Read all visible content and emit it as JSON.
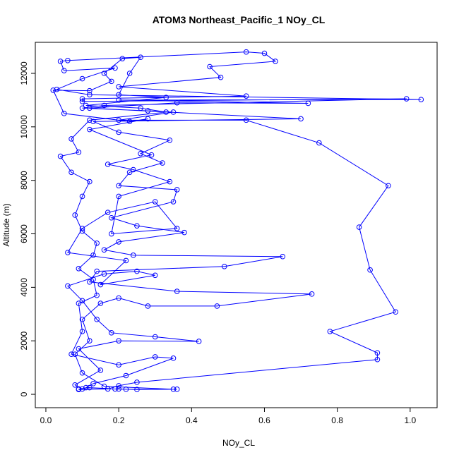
{
  "chart_data": {
    "type": "line",
    "title": "ATOM3 Northeast_Pacific_1 NOy_CL",
    "xlabel": "NOy_CL",
    "ylabel": "Altitude (m)",
    "color": "#0000ff",
    "x": [
      0.09,
      0.12,
      0.2,
      0.25,
      0.35,
      0.16,
      0.1,
      0.08,
      0.12,
      0.1,
      0.15,
      0.2,
      0.28,
      0.47,
      0.73,
      0.36,
      0.12,
      0.14,
      0.49,
      0.65,
      0.24,
      0.16,
      0.2,
      0.38,
      0.25,
      0.18,
      0.35,
      0.36,
      0.2,
      0.23,
      0.32,
      0.26,
      0.34,
      0.2,
      0.13,
      0.7,
      0.12,
      0.36,
      0.72,
      0.2,
      1.03,
      0.12,
      0.03,
      0.1,
      0.19,
      0.05,
      0.04,
      0.06,
      0.55,
      0.6,
      0.63,
      0.45,
      0.48,
      0.2,
      0.55,
      0.1,
      0.1,
      0.99,
      0.16,
      0.1,
      0.28,
      0.35,
      0.2,
      0.55,
      0.75,
      0.94,
      0.86,
      0.89,
      0.96,
      0.78,
      0.91,
      0.91,
      0.25,
      0.2,
      0.17,
      0.09,
      0.1,
      0.08,
      0.15,
      0.09,
      0.2,
      0.42,
      0.3,
      0.18,
      0.14,
      0.1,
      0.06,
      0.16,
      0.25,
      0.3,
      0.15,
      0.22,
      0.06,
      0.1,
      0.17,
      0.3,
      0.36,
      0.18,
      0.2,
      0.34,
      0.24,
      0.17,
      0.29,
      0.12,
      0.28,
      0.23,
      0.05,
      0.02,
      0.12,
      0.18,
      0.16,
      0.21,
      0.26,
      0.23,
      0.2,
      0.33,
      0.11,
      0.26,
      0.33,
      0.12,
      0.07,
      0.09,
      0.04,
      0.07,
      0.12,
      0.1,
      0.08,
      0.1,
      0.14,
      0.13,
      0.09,
      0.13,
      0.14,
      0.09,
      0.1,
      0.07,
      0.2,
      0.3,
      0.35,
      0.22,
      0.13,
      0.11,
      0.19,
      0.22,
      0.36
    ],
    "values": [
      200,
      250,
      200,
      180,
      190,
      300,
      800,
      1500,
      2000,
      2800,
      3400,
      3600,
      3300,
      3300,
      3750,
      3850,
      4200,
      4600,
      4780,
      5150,
      5200,
      5400,
      5700,
      6050,
      6300,
      6600,
      7200,
      7650,
      7800,
      8300,
      8650,
      9000,
      9500,
      9800,
      10200,
      10300,
      10700,
      10900,
      10880,
      11000,
      11020,
      11200,
      11400,
      11800,
      12200,
      12100,
      12450,
      12480,
      12800,
      12750,
      12450,
      12250,
      11850,
      11500,
      11150,
      11050,
      10950,
      11050,
      10800,
      10700,
      10600,
      10550,
      10250,
      10250,
      9400,
      7800,
      6250,
      4650,
      3080,
      2350,
      1550,
      1300,
      450,
      320,
      200,
      180,
      200,
      350,
      900,
      1700,
      2000,
      1980,
      2150,
      2300,
      2800,
      3500,
      4050,
      4500,
      4600,
      4450,
      4100,
      5000,
      5300,
      6200,
      6800,
      7200,
      6200,
      6000,
      7400,
      7950,
      8400,
      8600,
      8950,
      9900,
      10300,
      10200,
      10500,
      11370,
      11350,
      11700,
      12000,
      12550,
      12600,
      12000,
      11200,
      11100,
      10800,
      10700,
      10550,
      10250,
      9550,
      9050,
      8900,
      8300,
      7950,
      7400,
      6700,
      6100,
      5650,
      5200,
      4700,
      4300,
      3700,
      3400,
      2350,
      1500,
      1100,
      1400,
      1350,
      700,
      400,
      250,
      200,
      190,
      190
    ],
    "xlim": [
      -0.029,
      1.074
    ],
    "ylim": [
      -500,
      13160
    ],
    "xticks": [
      {
        "value": 0,
        "label": "0.0"
      },
      {
        "value": 0.2,
        "label": "0.2"
      },
      {
        "value": 0.4,
        "label": "0.4"
      },
      {
        "value": 0.6,
        "label": "0.6"
      },
      {
        "value": 0.8,
        "label": "0.8"
      },
      {
        "value": 1,
        "label": "1.0"
      }
    ],
    "yticks": [
      0,
      2000,
      4000,
      6000,
      8000,
      10000,
      12000
    ]
  }
}
